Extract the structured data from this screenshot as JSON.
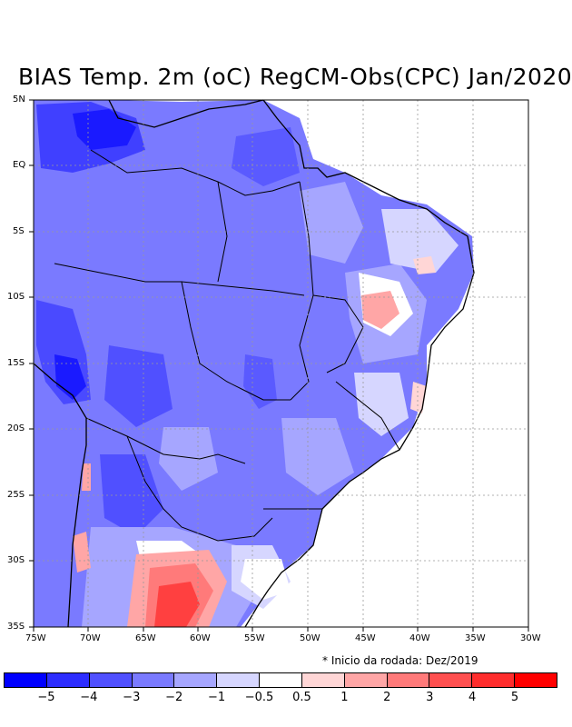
{
  "title": "BIAS Temp. 2m (oC) RegCM-Obs(CPC) Jan/2020",
  "note": "* Inicio da rodada: Dez/2019",
  "map": {
    "lon_labels": [
      "75W",
      "70W",
      "65W",
      "60W",
      "55W",
      "50W",
      "45W",
      "40W",
      "35W",
      "30W"
    ],
    "lat_labels": [
      "5N",
      "EQ",
      "5S",
      "10S",
      "15S",
      "20S",
      "25S",
      "30S",
      "35S"
    ]
  },
  "legend": {
    "colors": [
      "#0000ff",
      "#2d2dff",
      "#5050ff",
      "#7a7aff",
      "#a6a6ff",
      "#d6d6ff",
      "#ffffff",
      "#ffd6d6",
      "#ffa6a6",
      "#ff7a7a",
      "#ff5050",
      "#ff2d2d",
      "#ff0000"
    ],
    "ticks": [
      "−5",
      "−4",
      "−3",
      "−2",
      "−1",
      "−0.5",
      "0.5",
      "1",
      "2",
      "3",
      "4",
      "5"
    ]
  }
}
